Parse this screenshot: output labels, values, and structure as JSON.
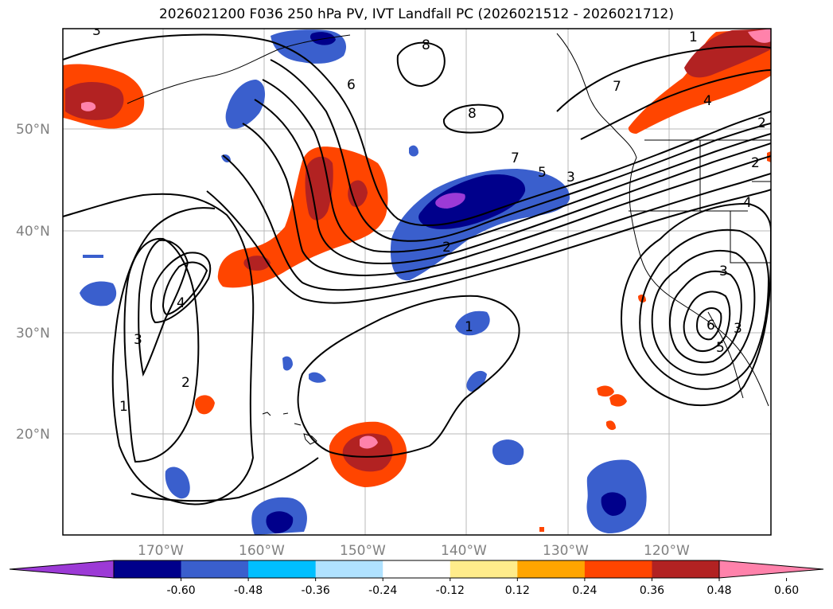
{
  "title": "2026021200 F036 250 hPa PV, IVT Landfall PC (2026021512 - 2026021712)",
  "axes": {
    "lat_labels": [
      "50°N",
      "40°N",
      "30°N",
      "20°N"
    ],
    "lon_labels": [
      "170°W",
      "160°W",
      "150°W",
      "140°W",
      "130°W",
      "120°W"
    ]
  },
  "contour_labels": [
    "8",
    "8",
    "6",
    "7",
    "5",
    "3",
    "2",
    "1",
    "4",
    "3",
    "2",
    "1",
    "7",
    "4",
    "2",
    "4",
    "2",
    "6",
    "3",
    "5",
    "3",
    "1",
    "3"
  ],
  "colorbar": {
    "ticks": [
      "-0.60",
      "-0.48",
      "-0.36",
      "-0.24",
      "-0.12",
      "0.12",
      "0.24",
      "0.36",
      "0.48",
      "0.60"
    ],
    "colors": [
      "#9c3ad6",
      "#00008b",
      "#3a5fcd",
      "#00bfff",
      "#b0e2ff",
      "#ffffff",
      "#ffec8b",
      "#ffa500",
      "#ff4500",
      "#b22222",
      "#ff82ab"
    ]
  }
}
